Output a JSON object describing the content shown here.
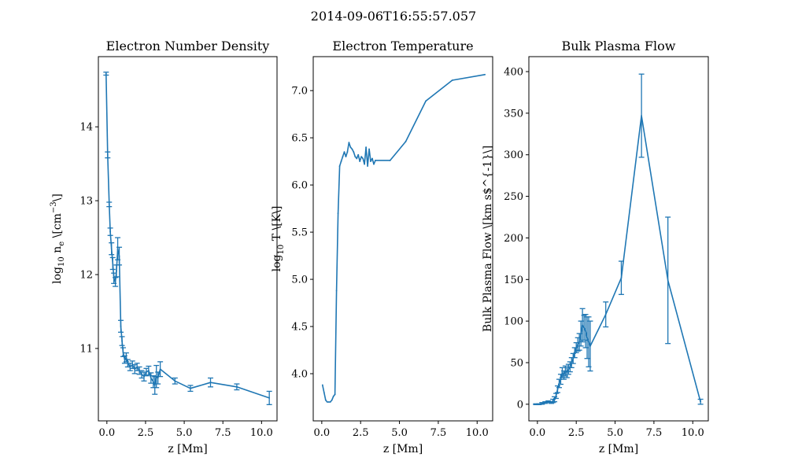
{
  "suptitle": "2014-09-06T16:55:57.057",
  "colors": {
    "series": "#1f77b4",
    "axis": "#000000",
    "background": "#ffffff"
  },
  "chart_data": [
    {
      "type": "line",
      "title": "Electron Number Density",
      "xlabel": "z [Mm]",
      "ylabel_parts": {
        "pre": "log",
        "sub1": "10",
        "mid": " n",
        "sub2": "e",
        "post1": " \\[cm",
        "sup": "−3",
        "post2": "\\]"
      },
      "xlim": [
        -0.55,
        11.0
      ],
      "ylim": [
        10.02,
        14.95
      ],
      "xticks": [
        0,
        2.5,
        5,
        7.5,
        10
      ],
      "xtick_labels": [
        "0.0",
        "2.5",
        "5.0",
        "7.5",
        "10.0"
      ],
      "yticks": [
        11,
        12,
        13,
        14
      ],
      "ytick_labels": [
        "11",
        "12",
        "13",
        "14"
      ],
      "grid": false,
      "series": [
        {
          "x": [
            -0.05,
            0.05,
            0.15,
            0.22,
            0.3,
            0.38,
            0.45,
            0.55,
            0.62,
            0.7,
            0.8,
            0.9,
            0.98,
            1.05,
            1.15,
            1.25,
            1.35,
            1.5,
            1.65,
            1.8,
            1.95,
            2.1,
            2.25,
            2.4,
            2.55,
            2.7,
            2.85,
            3.0,
            3.1,
            3.2,
            3.3,
            3.45,
            4.4,
            5.4,
            6.7,
            8.4,
            10.5
          ],
          "y": [
            14.72,
            13.62,
            12.95,
            12.58,
            12.35,
            12.15,
            11.95,
            11.9,
            12.05,
            12.35,
            12.25,
            11.3,
            11.1,
            10.95,
            10.85,
            10.88,
            10.8,
            10.75,
            10.78,
            10.72,
            10.75,
            10.7,
            10.65,
            10.62,
            10.68,
            10.7,
            10.6,
            10.55,
            10.5,
            10.62,
            10.6,
            10.72,
            10.56,
            10.46,
            10.54,
            10.48,
            10.33
          ],
          "err": [
            0.02,
            0.04,
            0.03,
            0.05,
            0.08,
            0.08,
            0.07,
            0.06,
            0.08,
            0.15,
            0.12,
            0.08,
            0.06,
            0.06,
            0.05,
            0.06,
            0.05,
            0.05,
            0.05,
            0.06,
            0.05,
            0.05,
            0.05,
            0.06,
            0.05,
            0.06,
            0.07,
            0.08,
            0.12,
            0.15,
            0.08,
            0.1,
            0.04,
            0.04,
            0.06,
            0.04,
            0.09
          ]
        }
      ]
    },
    {
      "type": "line",
      "title": "Electron Temperature",
      "xlabel": "z [Mm]",
      "ylabel_parts": {
        "pre": "log",
        "sub1": "10",
        "mid": " T \\[K\\]",
        "sub2": "",
        "post1": "",
        "sup": "",
        "post2": ""
      },
      "xlim": [
        -0.55,
        11.0
      ],
      "ylim": [
        3.5,
        7.36
      ],
      "xticks": [
        0,
        2.5,
        5,
        7.5,
        10
      ],
      "xtick_labels": [
        "0.0",
        "2.5",
        "5.0",
        "7.5",
        "10.0"
      ],
      "yticks": [
        4.0,
        4.5,
        5.0,
        5.5,
        6.0,
        6.5,
        7.0
      ],
      "ytick_labels": [
        "4.0",
        "4.5",
        "5.0",
        "5.5",
        "6.0",
        "6.5",
        "7.0"
      ],
      "grid": false,
      "series": [
        {
          "x": [
            0.05,
            0.15,
            0.25,
            0.35,
            0.45,
            0.55,
            0.65,
            0.75,
            0.85,
            0.95,
            1.05,
            1.15,
            1.25,
            1.35,
            1.45,
            1.55,
            1.65,
            1.75,
            1.85,
            1.95,
            2.05,
            2.15,
            2.25,
            2.35,
            2.45,
            2.55,
            2.65,
            2.75,
            2.85,
            2.95,
            3.05,
            3.15,
            3.25,
            3.35,
            3.45,
            4.4,
            5.4,
            6.7,
            8.4,
            10.5
          ],
          "y": [
            3.88,
            3.8,
            3.72,
            3.7,
            3.7,
            3.7,
            3.72,
            3.76,
            3.78,
            4.88,
            5.7,
            6.2,
            6.25,
            6.3,
            6.35,
            6.3,
            6.35,
            6.45,
            6.4,
            6.38,
            6.35,
            6.3,
            6.28,
            6.32,
            6.25,
            6.3,
            6.28,
            6.22,
            6.4,
            6.2,
            6.38,
            6.25,
            6.28,
            6.22,
            6.26,
            6.26,
            6.46,
            6.89,
            7.11,
            7.17
          ]
        }
      ]
    },
    {
      "type": "line",
      "title": "Bulk Plasma Flow",
      "xlabel": "z [Mm]",
      "ylabel_parts": {
        "pre": "Bulk Plasma Flow \\[km s$^{-1}\\]",
        "sub1": "",
        "mid": "",
        "sub2": "",
        "post1": "",
        "sup": "",
        "post2": ""
      },
      "xlim": [
        -0.55,
        11.0
      ],
      "ylim": [
        -20,
        418
      ],
      "xticks": [
        0,
        2.5,
        5,
        7.5,
        10
      ],
      "xtick_labels": [
        "0.0",
        "2.5",
        "5.0",
        "7.5",
        "10.0"
      ],
      "yticks": [
        0,
        50,
        100,
        150,
        200,
        250,
        300,
        350,
        400
      ],
      "ytick_labels": [
        "0",
        "50",
        "100",
        "150",
        "200",
        "250",
        "300",
        "350",
        "400"
      ],
      "grid": false,
      "series": [
        {
          "x": [
            -0.1,
            0.1,
            0.3,
            0.5,
            0.7,
            0.9,
            1.0,
            1.1,
            1.2,
            1.3,
            1.4,
            1.5,
            1.6,
            1.7,
            1.8,
            1.9,
            2.0,
            2.1,
            2.2,
            2.3,
            2.4,
            2.5,
            2.6,
            2.7,
            2.8,
            2.9,
            3.0,
            3.1,
            3.2,
            3.3,
            3.4,
            4.4,
            5.4,
            6.7,
            8.4,
            10.5
          ],
          "y": [
            0,
            0,
            1,
            2,
            3,
            2,
            4,
            6,
            10,
            18,
            25,
            30,
            38,
            35,
            40,
            38,
            42,
            45,
            50,
            55,
            62,
            68,
            72,
            75,
            85,
            95,
            92,
            88,
            80,
            75,
            70,
            108,
            152,
            347,
            149,
            3
          ],
          "err": [
            0.5,
            0.5,
            1,
            1,
            1,
            1,
            2,
            3,
            3,
            4,
            5,
            6,
            6,
            5,
            6,
            6,
            6,
            6,
            6,
            6,
            6,
            6,
            8,
            10,
            15,
            20,
            15,
            20,
            25,
            30,
            30,
            15,
            20,
            50,
            76,
            3
          ]
        }
      ]
    }
  ]
}
